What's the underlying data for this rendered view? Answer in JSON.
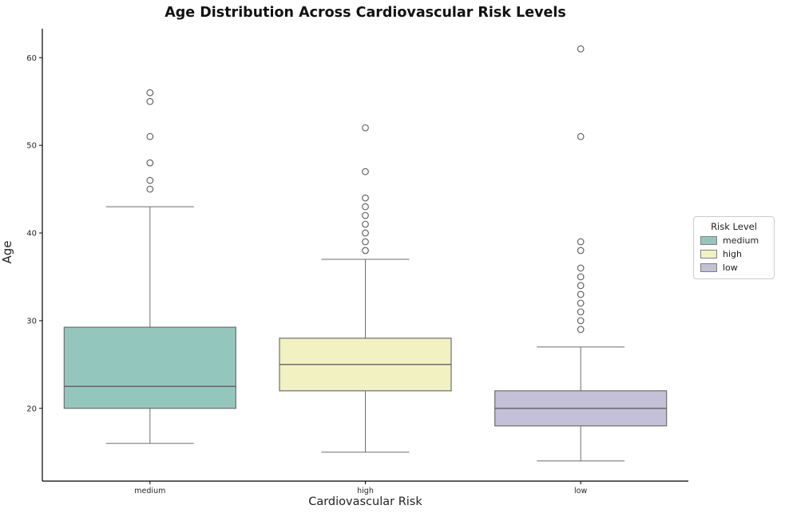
{
  "chart_data": {
    "type": "box",
    "title": "Age Distribution Across Cardiovascular Risk Levels",
    "xlabel": "Cardiovascular Risk",
    "ylabel": "Age",
    "categories": [
      "medium",
      "high",
      "low"
    ],
    "groups": [
      {
        "label": "medium",
        "color": "#93c7bd",
        "whisker_low": 16,
        "q1": 20,
        "median": 22.5,
        "q3": 29.25,
        "whisker_high": 43,
        "outliers": [
          45,
          46,
          48,
          51,
          55,
          56
        ]
      },
      {
        "label": "high",
        "color": "#f1f1c2",
        "whisker_low": 15,
        "q1": 22,
        "median": 25,
        "q3": 28,
        "whisker_high": 37,
        "outliers": [
          38,
          39,
          40,
          41,
          42,
          43,
          44,
          47,
          52
        ]
      },
      {
        "label": "low",
        "color": "#c3c0d8",
        "whisker_low": 14,
        "q1": 18,
        "median": 20,
        "q3": 22,
        "whisker_high": 27,
        "outliers": [
          29,
          30,
          31,
          32,
          33,
          34,
          35,
          36,
          38,
          39,
          51,
          61
        ]
      }
    ],
    "y_ticks": [
      20,
      30,
      40,
      50,
      60
    ],
    "ylim": [
      11.7,
      63.3
    ],
    "grid": false,
    "legend": {
      "title": "Risk Level",
      "position": "right",
      "entries": [
        {
          "label": "medium",
          "color": "#93c7bd"
        },
        {
          "label": "high",
          "color": "#f1f1c2"
        },
        {
          "label": "low",
          "color": "#c3c0d8"
        }
      ]
    },
    "style": {
      "edge_color": "#6e6e6e",
      "median_color": "#5f5f5f",
      "whisker_color": "#6e6e6e",
      "outlier_stroke": "#595959",
      "axis_color": "#000000",
      "tick_label_color": "#262626"
    }
  }
}
